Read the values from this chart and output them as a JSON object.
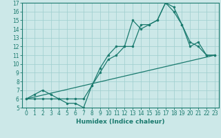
{
  "xlabel": "Humidex (Indice chaleur)",
  "bg_color": "#cce8e8",
  "line_color": "#1a7a6e",
  "xlim": [
    -0.5,
    23.5
  ],
  "ylim": [
    5,
    17
  ],
  "xticks": [
    0,
    1,
    2,
    3,
    4,
    5,
    6,
    7,
    8,
    9,
    10,
    11,
    12,
    13,
    14,
    15,
    16,
    17,
    18,
    19,
    20,
    21,
    22,
    23
  ],
  "yticks": [
    5,
    6,
    7,
    8,
    9,
    10,
    11,
    12,
    13,
    14,
    15,
    16,
    17
  ],
  "line1_x": [
    0,
    23
  ],
  "line1_y": [
    6,
    11
  ],
  "line2_x": [
    0,
    1,
    2,
    3,
    4,
    5,
    6,
    7,
    8,
    9,
    10,
    11,
    12,
    13,
    14,
    15,
    16,
    17,
    18,
    19,
    20,
    21,
    22,
    23
  ],
  "line2_y": [
    6,
    6,
    6,
    6,
    6,
    5.5,
    5.5,
    5,
    7.5,
    9.5,
    11,
    12,
    12,
    15,
    14,
    14.5,
    15,
    17,
    16.5,
    14.5,
    12.5,
    12,
    11,
    11
  ],
  "line3_x": [
    0,
    1,
    2,
    3,
    4,
    5,
    6,
    7,
    8,
    9,
    10,
    11,
    12,
    13,
    14,
    15,
    16,
    17,
    18,
    19,
    20,
    21,
    22,
    23
  ],
  "line3_y": [
    6,
    6.5,
    7,
    6.5,
    6,
    6,
    6,
    6,
    7.5,
    9,
    10.5,
    11,
    12,
    12,
    14.5,
    14.5,
    15,
    17,
    16,
    14.5,
    12,
    12.5,
    11,
    11
  ]
}
